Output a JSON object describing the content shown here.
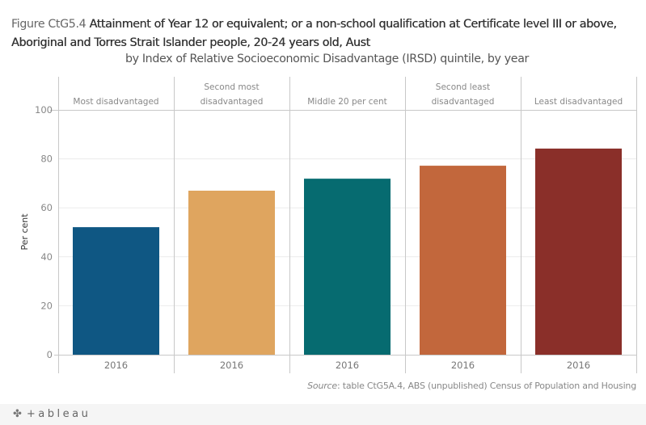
{
  "title": {
    "prefix": "Figure CtG5.4",
    "main": "Attainment of Year 12 or equivalent; or a non-school qualification at Certificate level III or above, Aboriginal and Torres Strait Islander people, 20-24 years old, Aust",
    "subtitle": "by Index of Relative Socioeconomic Disadvantage (IRSD) quintile, by year"
  },
  "source": {
    "label": "Source",
    "text": ": table CtG5A.4, ABS (unpublished) Census of Population and Housing"
  },
  "footer": {
    "logo_text": "+ableau",
    "logo_icon": "tableau-cross-icon"
  },
  "colors": {
    "gridline": "#ececec",
    "divider": "#c8c8c8"
  },
  "chart_data": {
    "type": "bar",
    "title": "Attainment of Year 12 or equivalent; or a non-school qualification at Certificate level III or above, Aboriginal and Torres Strait Islander people, 20-24 years old, Aust",
    "xlabel": "",
    "ylabel": "Per cent",
    "ylim": [
      0,
      100
    ],
    "yticks": [
      0,
      20,
      40,
      60,
      80,
      100
    ],
    "grid": true,
    "legend": "none",
    "panels": [
      {
        "label_lines": [
          "Most disadvantaged"
        ],
        "year": "2016",
        "value": 52.1,
        "color": "#0f5783"
      },
      {
        "label_lines": [
          "Second most",
          "disadvantaged"
        ],
        "year": "2016",
        "value": 67.0,
        "color": "#dfa55f"
      },
      {
        "label_lines": [
          "Middle 20 per cent"
        ],
        "year": "2016",
        "value": 71.9,
        "color": "#066b70"
      },
      {
        "label_lines": [
          "Second least",
          "disadvantaged"
        ],
        "year": "2016",
        "value": 77.2,
        "color": "#c2673c"
      },
      {
        "label_lines": [
          "Least disadvantaged"
        ],
        "year": "2016",
        "value": 84.2,
        "color": "#8a2f29"
      }
    ]
  }
}
